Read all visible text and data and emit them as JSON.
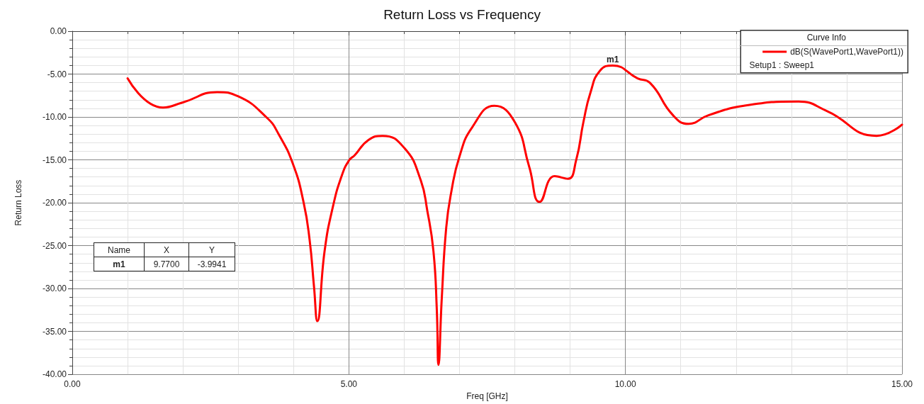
{
  "chart_data": {
    "type": "line",
    "title": "Return Loss vs Frequency",
    "xlabel": "Freq [GHz]",
    "ylabel": "Return Loss",
    "legend_title": "Curve Info",
    "legend": "top right",
    "grid": true,
    "line_style": "solid",
    "marker": "none",
    "xlim": [
      0,
      15
    ],
    "xticks": [
      {
        "value": 0,
        "label": "0.00"
      },
      {
        "value": 5,
        "label": "5.00"
      },
      {
        "value": 10,
        "label": "10.00"
      },
      {
        "value": 15,
        "label": "15.00"
      }
    ],
    "ylim": [
      -40,
      0
    ],
    "yticks": [
      {
        "value": -40,
        "label": "-40.00"
      },
      {
        "value": -35,
        "label": "-35.00"
      },
      {
        "value": -30,
        "label": "-30.00"
      },
      {
        "value": -25,
        "label": "-25.00"
      },
      {
        "value": -20,
        "label": "-20.00"
      },
      {
        "value": -15,
        "label": "-15.00"
      },
      {
        "value": -10,
        "label": "-10.00"
      },
      {
        "value": -5,
        "label": "-5.00"
      },
      {
        "value": 0,
        "label": "0.00"
      }
    ],
    "series": [
      {
        "name": "dB(S(WavePort1,WavePort1))",
        "color": "#ff0000",
        "x": [
          1.0,
          1.64,
          2.0,
          2.62,
          3.0,
          3.52,
          3.73,
          3.99,
          4.18,
          4.29,
          4.37,
          4.43,
          4.56,
          4.71,
          4.88,
          5.01,
          5.1,
          5.35,
          5.61,
          6.0,
          6.29,
          6.42,
          6.53,
          6.59,
          6.62,
          6.68,
          6.76,
          6.85,
          7.0,
          7.23,
          7.63,
          8.0,
          8.26,
          8.45,
          8.72,
          8.96,
          9.11,
          9.24,
          9.37,
          9.54,
          9.77,
          10.22,
          10.44,
          10.86,
          11.14,
          11.5,
          12.14,
          13.13,
          13.64,
          14.54,
          15.0
        ],
        "values": [
          -5.5,
          -8.9,
          -8.3,
          -7.1,
          -7.6,
          -10.1,
          -12.0,
          -15.5,
          -19.9,
          -24.3,
          -29.8,
          -33.8,
          -25.7,
          -20.5,
          -16.7,
          -15.0,
          -14.5,
          -12.7,
          -12.2,
          -13.6,
          -17.2,
          -21.0,
          -25.7,
          -32.5,
          -38.9,
          -31.1,
          -22.9,
          -18.8,
          -14.6,
          -11.2,
          -8.7,
          -10.6,
          -15.8,
          -19.9,
          -16.9,
          -17.2,
          -15.0,
          -10.6,
          -7.1,
          -4.6,
          -4.0,
          -5.5,
          -6.0,
          -9.8,
          -10.8,
          -9.8,
          -8.7,
          -8.2,
          -9.3,
          -12.2,
          -10.9
        ]
      }
    ],
    "annotations": [
      {
        "text": "m1",
        "x": 9.77,
        "y": -3.9941
      },
      "Setup1 : Sweep1",
      "Name",
      "X",
      "Y",
      "m1",
      "9.7700",
      "-3.9941"
    ]
  }
}
